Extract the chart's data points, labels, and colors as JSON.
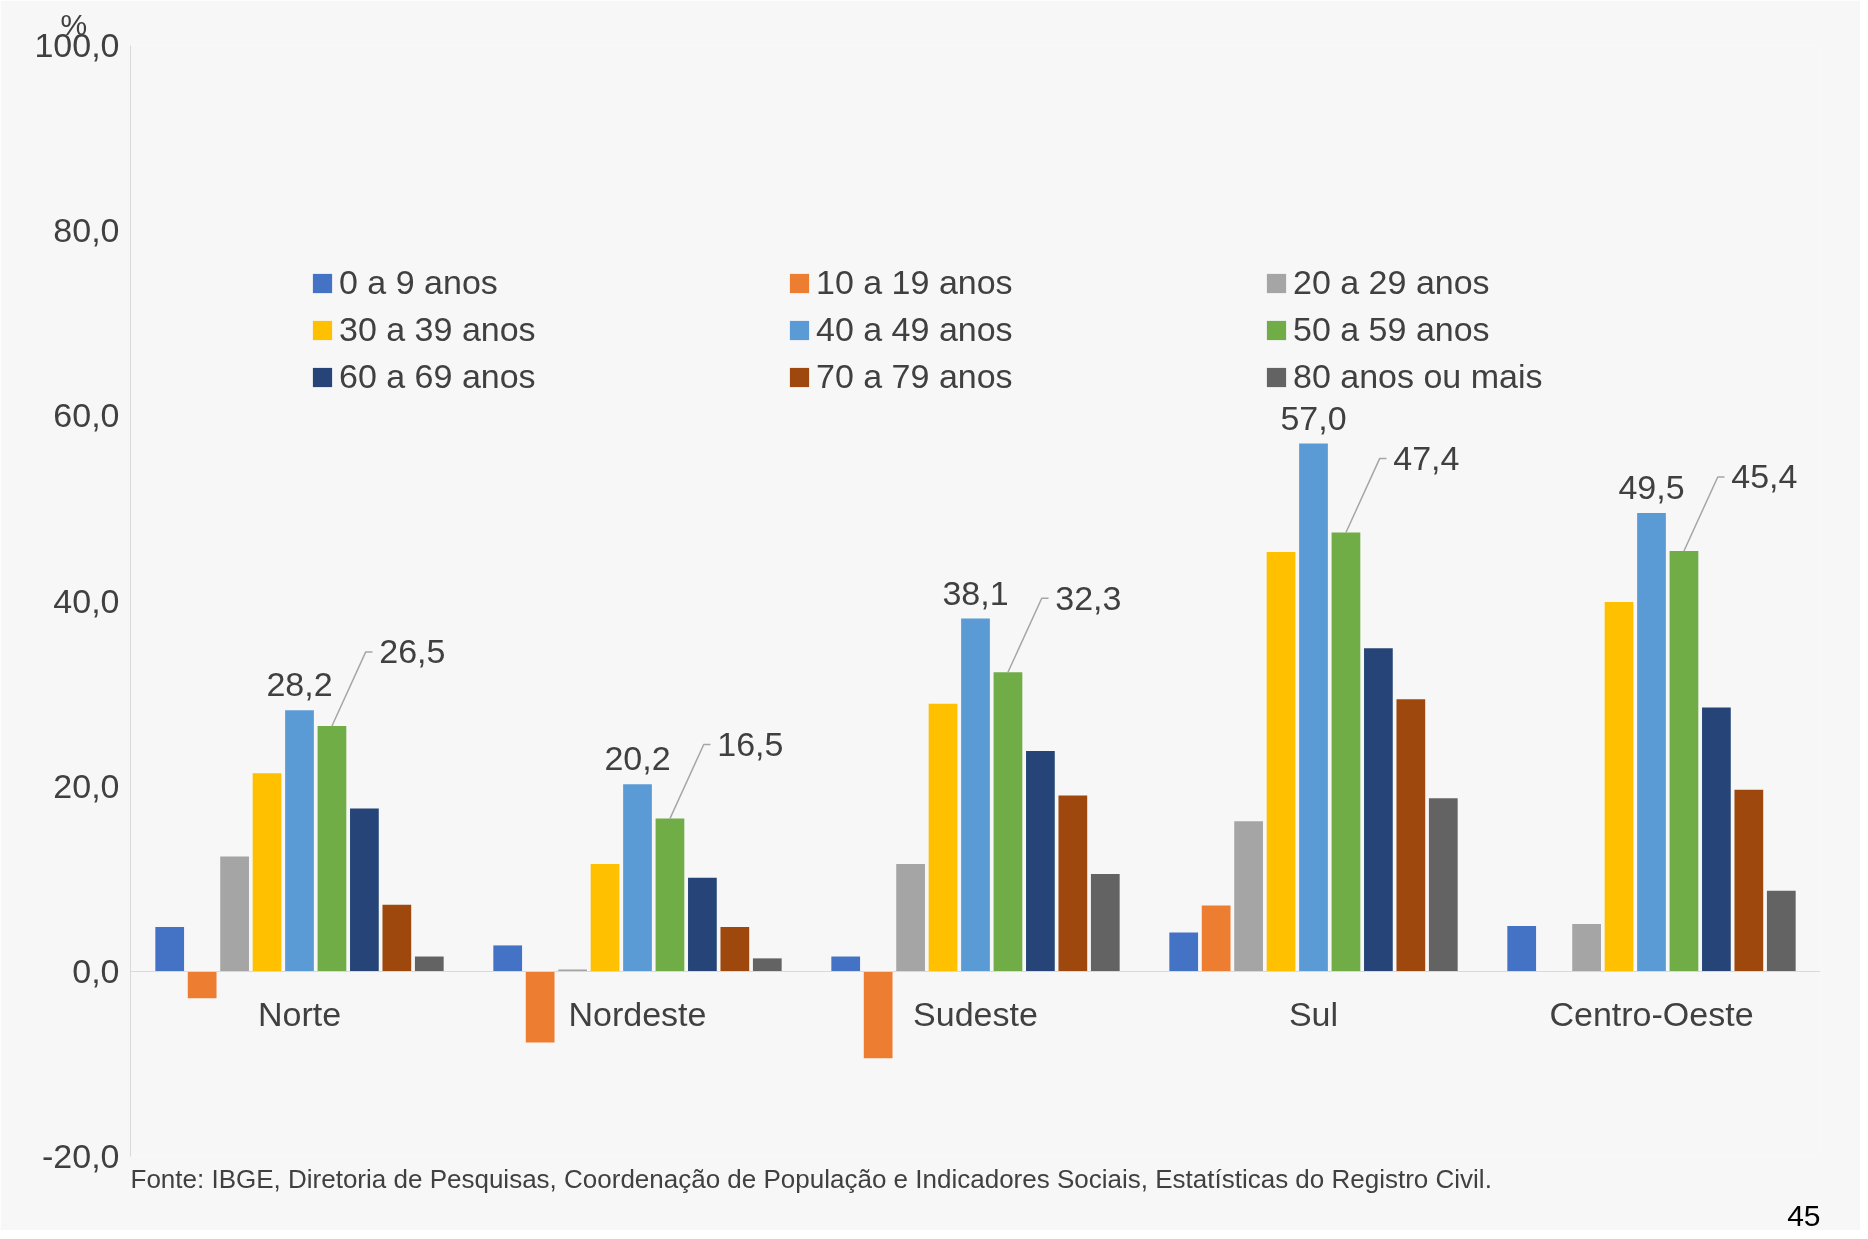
{
  "chart_data": {
    "type": "bar",
    "ylabel": "%",
    "categories": [
      "Norte",
      "Nordeste",
      "Sudeste",
      "Sul",
      "Centro-Oeste"
    ],
    "ylim": [
      -20,
      100
    ],
    "yticks": [
      {
        "value": -20,
        "label": "-20,0"
      },
      {
        "value": 0,
        "label": "0,0"
      },
      {
        "value": 20,
        "label": "20,0"
      },
      {
        "value": 40,
        "label": "40,0"
      },
      {
        "value": 60,
        "label": "60,0"
      },
      {
        "value": 80,
        "label": "80,0"
      },
      {
        "value": 100,
        "label": "100,0"
      }
    ],
    "grid": false,
    "legend": "top",
    "series": [
      {
        "name": "0 a 9 anos",
        "color": "#4472c4",
        "values": [
          4.8,
          2.8,
          1.6,
          4.2,
          4.9
        ]
      },
      {
        "name": "10 a 19 anos",
        "color": "#ed7d31",
        "values": [
          -2.9,
          -7.7,
          -9.4,
          7.1,
          null
        ]
      },
      {
        "name": "20 a 29 anos",
        "color": "#a5a5a5",
        "values": [
          12.4,
          0.2,
          11.6,
          16.2,
          5.1
        ]
      },
      {
        "name": "30 a 39 anos",
        "color": "#ffc000",
        "values": [
          21.4,
          11.6,
          28.9,
          45.3,
          39.9
        ]
      },
      {
        "name": "40 a 49 anos",
        "color": "#5b9bd5",
        "values": [
          28.2,
          20.2,
          38.1,
          57.0,
          49.5
        ],
        "value_labels": [
          "28,2",
          "20,2",
          "38,1",
          "57,0",
          "49,5"
        ]
      },
      {
        "name": "50 a 59 anos",
        "color": "#70ad47",
        "values": [
          26.5,
          16.5,
          32.3,
          47.4,
          45.4
        ],
        "value_labels": [
          "26,5",
          "16,5",
          "32,3",
          "47,4",
          "45,4"
        ]
      },
      {
        "name": "60 a 69 anos",
        "color": "#264478",
        "values": [
          17.6,
          10.1,
          23.8,
          34.9,
          28.5
        ]
      },
      {
        "name": "70 a 79 anos",
        "color": "#9e480e",
        "values": [
          7.2,
          4.8,
          19.0,
          29.4,
          19.6
        ]
      },
      {
        "name": "80 anos ou mais",
        "color": "#636363",
        "values": [
          1.6,
          1.4,
          10.5,
          18.7,
          8.7
        ]
      }
    ],
    "annotations": [
      "Fonte: IBGE, Diretoria de Pesquisas, Coordenação de População e Indicadores Sociais, Estatísticas do Registro Civil.",
      "45"
    ]
  }
}
